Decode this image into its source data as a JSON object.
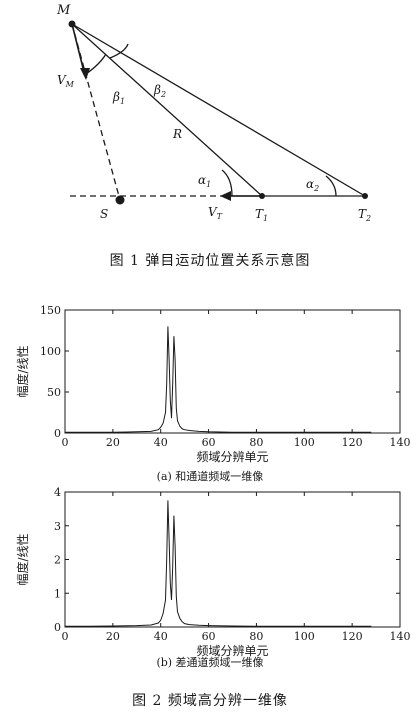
{
  "figure1": {
    "caption": "图 1   弹目运动位置关系示意图",
    "labels": {
      "M": "M",
      "VM": "V",
      "VM_sub": "M",
      "beta1": "β",
      "beta1_sub": "1",
      "beta2": "β",
      "beta2_sub": "2",
      "R": "R",
      "alpha1": "α",
      "alpha1_sub": "1",
      "alpha2": "α",
      "alpha2_sub": "2",
      "VT": "V",
      "VT_sub": "T",
      "T1": "T",
      "T1_sub": "1",
      "T2": "T",
      "T2_sub": "2",
      "S": "S"
    }
  },
  "figure2": {
    "caption": "图 2   频域高分辨一维像"
  },
  "chart_data": [
    {
      "type": "line",
      "subtitle": "(a)  和通道频域一维像",
      "xlabel": "频域分辨单元",
      "ylabel": "幅度/线性",
      "xlim": [
        0,
        140
      ],
      "ylim": [
        0,
        150
      ],
      "xticks": [
        0,
        20,
        40,
        60,
        80,
        100,
        120,
        140
      ],
      "yticks": [
        0,
        50,
        100,
        150
      ],
      "x": [
        0,
        10,
        20,
        30,
        36,
        39,
        40,
        41,
        42,
        42.5,
        43,
        43.5,
        44,
        44.5,
        45,
        45.5,
        46,
        46.5,
        47,
        48,
        49,
        50,
        52,
        56,
        60,
        70,
        80,
        90,
        100,
        110,
        120,
        128
      ],
      "values": [
        1,
        1,
        1,
        1.5,
        2,
        4,
        7,
        12,
        25,
        60,
        130,
        90,
        40,
        18,
        60,
        118,
        90,
        30,
        15,
        8,
        5,
        4,
        3,
        2,
        1.5,
        1,
        1,
        1,
        1,
        1,
        1,
        1
      ]
    },
    {
      "type": "line",
      "subtitle": "(b)  差通道频域一维像",
      "xlabel": "频域分辨单元",
      "ylabel": "幅度/线性",
      "xlim": [
        0,
        140
      ],
      "ylim": [
        0,
        4
      ],
      "xticks": [
        0,
        20,
        40,
        60,
        80,
        100,
        120,
        140
      ],
      "yticks": [
        0,
        1,
        2,
        3,
        4
      ],
      "x": [
        0,
        10,
        20,
        30,
        36,
        39,
        40,
        41,
        42,
        42.5,
        43,
        43.5,
        44,
        44.5,
        45,
        45.5,
        46,
        46.5,
        47,
        48,
        49,
        50,
        52,
        56,
        60,
        70,
        80,
        90,
        100,
        110,
        120,
        128
      ],
      "values": [
        0.02,
        0.02,
        0.03,
        0.04,
        0.06,
        0.12,
        0.2,
        0.4,
        0.8,
        2.0,
        3.75,
        2.6,
        1.3,
        0.8,
        1.8,
        3.3,
        2.4,
        0.9,
        0.45,
        0.25,
        0.15,
        0.1,
        0.07,
        0.05,
        0.04,
        0.03,
        0.02,
        0.02,
        0.02,
        0.02,
        0.02,
        0.02
      ]
    }
  ]
}
